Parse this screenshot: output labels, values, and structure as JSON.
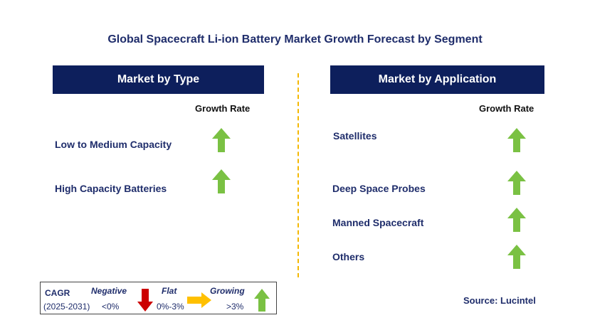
{
  "title": "Global Spacecraft Li-ion Battery Market Growth Forecast by Segment",
  "left_panel": {
    "header": "Market by Type",
    "growth_label": "Growth Rate",
    "items": [
      {
        "label": "Low to Medium Capacity",
        "trend": "growing"
      },
      {
        "label": "High Capacity Batteries",
        "trend": "growing"
      }
    ]
  },
  "right_panel": {
    "header": "Market by Application",
    "growth_label": "Growth Rate",
    "items": [
      {
        "label": "Satellites",
        "trend": "growing"
      },
      {
        "label": "Deep Space Probes",
        "trend": "growing"
      },
      {
        "label": "Manned Spacecraft",
        "trend": "growing"
      },
      {
        "label": "Others",
        "trend": "growing"
      }
    ]
  },
  "legend": {
    "cagr": "CAGR",
    "period": "(2025-2031)",
    "negative": {
      "label": "Negative",
      "range": "<0%",
      "color": "#cc0000",
      "icon": "arrow-down-icon"
    },
    "flat": {
      "label": "Flat",
      "range": "0%-3%",
      "color": "#ffc000",
      "icon": "arrow-right-icon"
    },
    "growing": {
      "label": "Growing",
      "range": ">3%",
      "color": "#7ac143",
      "icon": "arrow-up-icon"
    }
  },
  "source": "Source: Lucintel",
  "colors": {
    "header_bg": "#0d1f5c",
    "divider": "#f5b800",
    "growing": "#7ac143"
  }
}
